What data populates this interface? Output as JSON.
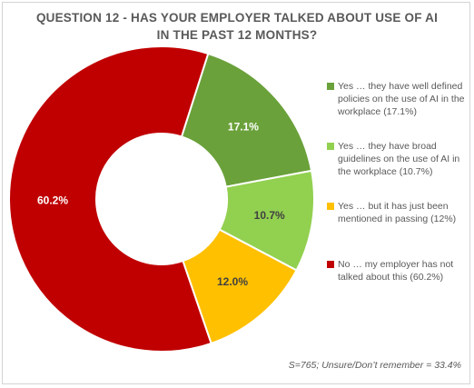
{
  "chart_data": {
    "type": "pie",
    "title_lines": [
      "QUESTION 12 - HAS YOUR EMPLOYER TALKED ABOUT USE OF AI",
      "IN THE PAST 12 MONTHS?"
    ],
    "donut": true,
    "slices": [
      {
        "label": "Yes … they have well defined policies on the use of AI in the workplace (17.1%)",
        "value": 17.1,
        "data_label": "17.1%",
        "color": "#6aa13a",
        "text_color": "#ffffff"
      },
      {
        "label": "Yes … they have broad guidelines on the use of AI in the workplace (10.7%)",
        "value": 10.7,
        "data_label": "10.7%",
        "color": "#92d050",
        "text_color": "#404040"
      },
      {
        "label": "Yes … but it has just been mentioned in passing (12%)",
        "value": 12.0,
        "data_label": "12.0%",
        "color": "#ffc000",
        "text_color": "#404040"
      },
      {
        "label": "No … my employer has not talked about this (60.2%)",
        "value": 60.2,
        "data_label": "60.2%",
        "color": "#c00000",
        "text_color": "#ffffff"
      }
    ],
    "legend_position": "right",
    "footnote": "S=765; Unsure/Don’t remember = 33.4%"
  }
}
